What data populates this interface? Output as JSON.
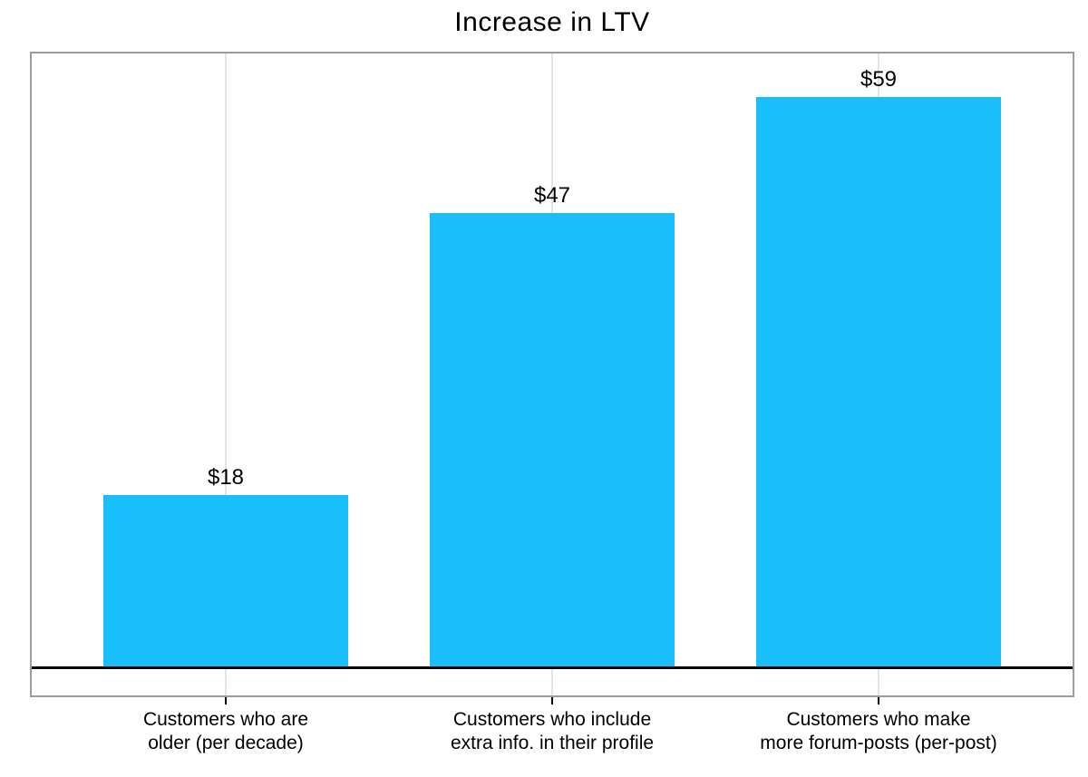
{
  "chart_data": {
    "type": "bar",
    "title": "Increase in LTV",
    "categories": [
      "Customers who are\nolder (per decade)",
      "Customers who include\nextra info. in their profile",
      "Customers who make\nmore forum-posts (per-post)"
    ],
    "values": [
      18,
      47,
      59
    ],
    "value_labels": [
      "$18",
      "$47",
      "$59"
    ],
    "xlabel": "",
    "ylabel": "",
    "ylim": [
      0,
      63.5
    ],
    "grid": "vertical gridlines at category centers",
    "legend": "none",
    "bar_color": "#19BEFA",
    "axis_line_color": "#000000",
    "plot_border_color": "#9C9C9C",
    "gridline_color": "#E3E3E3",
    "text_color": "#000000",
    "background_color": "#FFFFFF"
  }
}
